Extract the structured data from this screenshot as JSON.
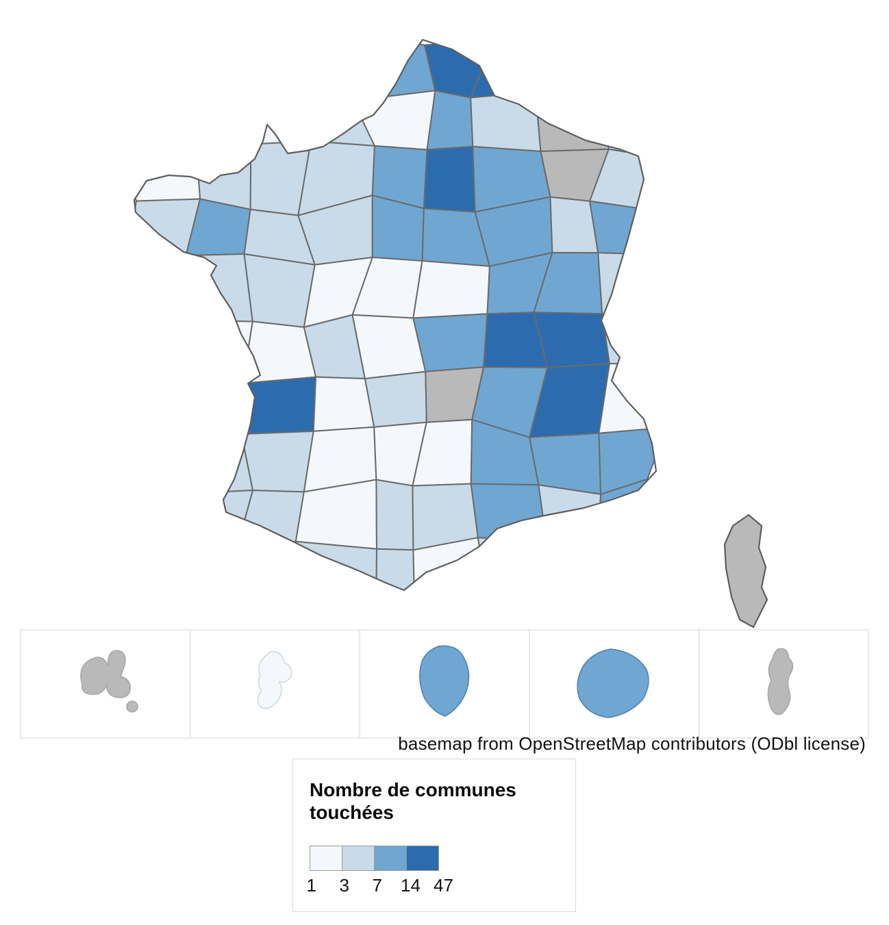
{
  "map": {
    "caption": "basemap from OpenStreetMap contributors (ODbl license)",
    "border_color": "#6a6a6a",
    "outline_color": "#5e5e5e",
    "nodata_color": "#b9b9b9",
    "inset_border_color": "#e2e2e2"
  },
  "legend": {
    "title": "Nombre de communes touchées",
    "breaks": [
      "1",
      "3",
      "7",
      "14",
      "47"
    ],
    "classes": [
      {
        "code": "w",
        "color": "#f4f8fc"
      },
      {
        "code": "l",
        "color": "#c9dbe9"
      },
      {
        "code": "m",
        "color": "#6fa7d2"
      },
      {
        "code": "d",
        "color": "#2c6cae"
      }
    ]
  },
  "insets": {
    "count": 5,
    "fills": [
      "nodata",
      "class1",
      "class3",
      "class3",
      "nodata"
    ]
  },
  "choropleth": {
    "grid": [
      "wwwwmddww",
      "wwwlwmlgl",
      "wlllmdmgl",
      "lmllmmmlm",
      "wllwwwmml",
      "wwwlwmddl",
      "wwdwlgmdw",
      "lllwwwmmm",
      "wllwllmlm",
      "wwlllwlww"
    ]
  }
}
